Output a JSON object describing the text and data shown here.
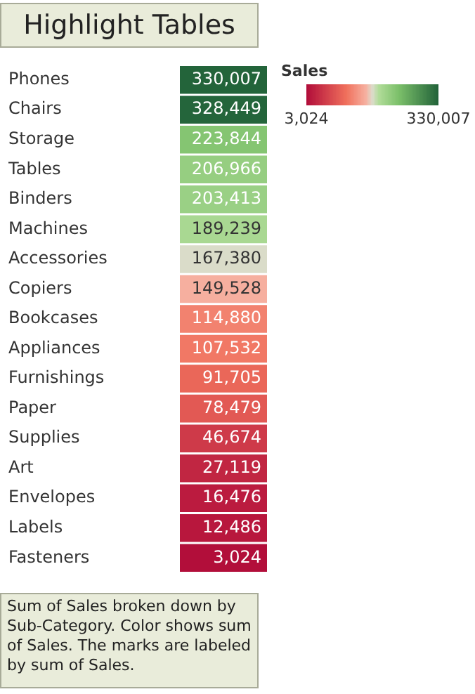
{
  "chart_data": {
    "type": "heatmap",
    "title": "Highlight Tables",
    "categories": [
      null
    ],
    "y_categories": [
      "Phones",
      "Chairs",
      "Storage",
      "Tables",
      "Binders",
      "Machines",
      "Accessories",
      "Copiers",
      "Bookcases",
      "Appliances",
      "Furnishings",
      "Paper",
      "Supplies",
      "Art",
      "Envelopes",
      "Labels",
      "Fasteners"
    ],
    "cells": [
      [
        330007
      ],
      [
        328449
      ],
      [
        223844
      ],
      [
        206966
      ],
      [
        203413
      ],
      [
        189239
      ],
      [
        167380
      ],
      [
        149528
      ],
      [
        114880
      ],
      [
        107532
      ],
      [
        91705
      ],
      [
        78479
      ],
      [
        46674
      ],
      [
        27119
      ],
      [
        16476
      ],
      [
        12486
      ],
      [
        3024
      ]
    ],
    "cell_labels": [
      [
        "330,007"
      ],
      [
        "328,449"
      ],
      [
        "223,844"
      ],
      [
        "206,966"
      ],
      [
        "203,413"
      ],
      [
        "189,239"
      ],
      [
        "167,380"
      ],
      [
        "149,528"
      ],
      [
        "114,880"
      ],
      [
        "107,532"
      ],
      [
        "91,705"
      ],
      [
        "78,479"
      ],
      [
        "46,674"
      ],
      [
        "27,119"
      ],
      [
        "16,476"
      ],
      [
        "12,486"
      ],
      [
        "3,024"
      ]
    ],
    "clabel": "Sales",
    "clim": [
      3024,
      330007
    ],
    "cticks": [
      {
        "value": 3024,
        "label": "3,024"
      },
      {
        "value": 330007,
        "label": "330,007"
      }
    ],
    "annotations": [
      "Sum of Sales broken down by Sub-Category.  Color shows sum of Sales.  The marks are labeled by sum of Sales."
    ]
  }
}
